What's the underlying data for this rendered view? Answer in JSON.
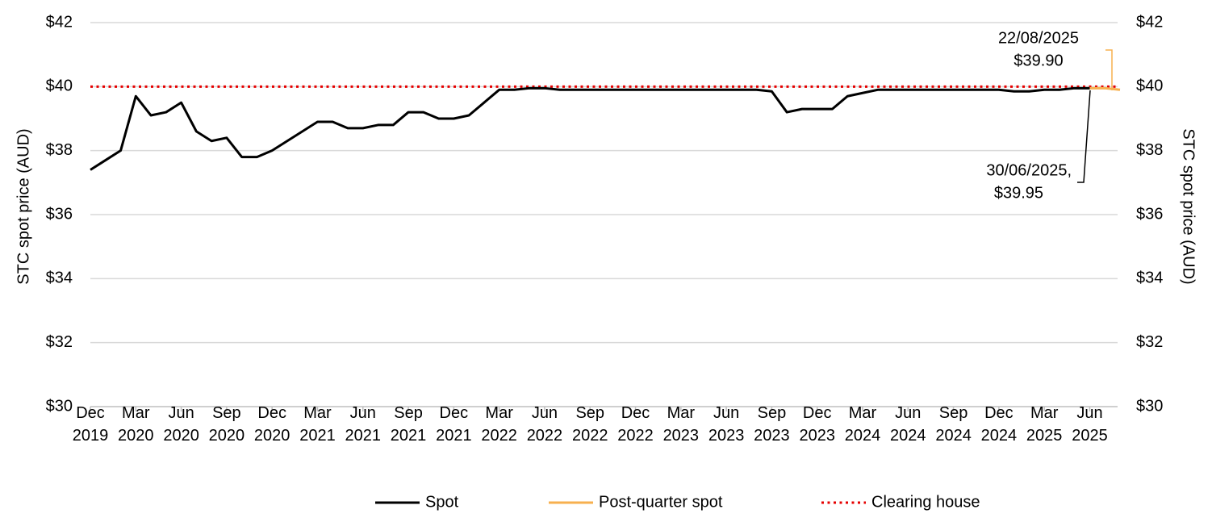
{
  "chart_data": {
    "type": "line",
    "ylabel": "STC spot price (AUD)",
    "y2label": "STC spot price (AUD)",
    "x": [
      "2019-12",
      "2020-01",
      "2020-02",
      "2020-03",
      "2020-04",
      "2020-05",
      "2020-06",
      "2020-07",
      "2020-08",
      "2020-09",
      "2020-10",
      "2020-11",
      "2020-12",
      "2021-01",
      "2021-02",
      "2021-03",
      "2021-04",
      "2021-05",
      "2021-06",
      "2021-07",
      "2021-08",
      "2021-09",
      "2021-10",
      "2021-11",
      "2021-12",
      "2022-01",
      "2022-02",
      "2022-03",
      "2022-04",
      "2022-05",
      "2022-06",
      "2022-07",
      "2022-08",
      "2022-09",
      "2022-10",
      "2022-11",
      "2022-12",
      "2023-01",
      "2023-02",
      "2023-03",
      "2023-04",
      "2023-05",
      "2023-06",
      "2023-07",
      "2023-08",
      "2023-09",
      "2023-10",
      "2023-11",
      "2023-12",
      "2024-01",
      "2024-02",
      "2024-03",
      "2024-04",
      "2024-05",
      "2024-06",
      "2024-07",
      "2024-08",
      "2024-09",
      "2024-10",
      "2024-11",
      "2024-12",
      "2025-01",
      "2025-02",
      "2025-03",
      "2025-04",
      "2025-05",
      "2025-06",
      "2025-07",
      "2025-08"
    ],
    "series": [
      {
        "name": "Spot",
        "color": "#000000",
        "values": [
          37.4,
          37.7,
          38.0,
          39.7,
          39.1,
          39.2,
          39.5,
          38.6,
          38.3,
          38.4,
          37.8,
          37.8,
          38.0,
          38.3,
          38.6,
          38.9,
          38.9,
          38.7,
          38.7,
          38.8,
          38.8,
          39.2,
          39.2,
          39.0,
          39.0,
          39.1,
          39.5,
          39.9,
          39.9,
          39.95,
          39.95,
          39.9,
          39.9,
          39.9,
          39.9,
          39.9,
          39.9,
          39.9,
          39.9,
          39.9,
          39.9,
          39.9,
          39.9,
          39.9,
          39.9,
          39.85,
          39.2,
          39.3,
          39.3,
          39.3,
          39.7,
          39.8,
          39.9,
          39.9,
          39.9,
          39.9,
          39.9,
          39.9,
          39.9,
          39.9,
          39.9,
          39.85,
          39.85,
          39.9,
          39.9,
          39.95,
          39.95,
          null,
          null
        ]
      },
      {
        "name": "Post-quarter spot",
        "color": "#f7b04f",
        "values": [
          null,
          null,
          null,
          null,
          null,
          null,
          null,
          null,
          null,
          null,
          null,
          null,
          null,
          null,
          null,
          null,
          null,
          null,
          null,
          null,
          null,
          null,
          null,
          null,
          null,
          null,
          null,
          null,
          null,
          null,
          null,
          null,
          null,
          null,
          null,
          null,
          null,
          null,
          null,
          null,
          null,
          null,
          null,
          null,
          null,
          null,
          null,
          null,
          null,
          null,
          null,
          null,
          null,
          null,
          null,
          null,
          null,
          null,
          null,
          null,
          null,
          null,
          null,
          null,
          null,
          null,
          39.95,
          39.95,
          39.9
        ]
      }
    ],
    "hlines": [
      {
        "name": "Clearing house",
        "value": 40,
        "color": "#e60000",
        "style": "dotted"
      }
    ],
    "xlim": [
      "2019-12",
      "2025-08"
    ],
    "xticks": [
      {
        "value": "2019-12",
        "label": "Dec 2019"
      },
      {
        "value": "2020-03",
        "label": "Mar 2020"
      },
      {
        "value": "2020-06",
        "label": "Jun 2020"
      },
      {
        "value": "2020-09",
        "label": "Sep 2020"
      },
      {
        "value": "2020-12",
        "label": "Dec 2020"
      },
      {
        "value": "2021-03",
        "label": "Mar 2021"
      },
      {
        "value": "2021-06",
        "label": "Jun 2021"
      },
      {
        "value": "2021-09",
        "label": "Sep 2021"
      },
      {
        "value": "2021-12",
        "label": "Dec 2021"
      },
      {
        "value": "2022-03",
        "label": "Mar 2022"
      },
      {
        "value": "2022-06",
        "label": "Jun 2022"
      },
      {
        "value": "2022-09",
        "label": "Sep 2022"
      },
      {
        "value": "2022-12",
        "label": "Dec 2022"
      },
      {
        "value": "2023-03",
        "label": "Mar 2023"
      },
      {
        "value": "2023-06",
        "label": "Jun 2023"
      },
      {
        "value": "2023-09",
        "label": "Sep 2023"
      },
      {
        "value": "2023-12",
        "label": "Dec 2023"
      },
      {
        "value": "2024-03",
        "label": "Mar 2024"
      },
      {
        "value": "2024-06",
        "label": "Jun 2024"
      },
      {
        "value": "2024-09",
        "label": "Sep 2024"
      },
      {
        "value": "2024-12",
        "label": "Dec 2024"
      },
      {
        "value": "2025-03",
        "label": "Mar 2025"
      },
      {
        "value": "2025-06",
        "label": "Jun 2025"
      }
    ],
    "ylim": [
      30,
      42
    ],
    "yticks": [
      {
        "value": 30,
        "label": "$30"
      },
      {
        "value": 32,
        "label": "$32"
      },
      {
        "value": 34,
        "label": "$34"
      },
      {
        "value": 36,
        "label": "$36"
      },
      {
        "value": 38,
        "label": "$38"
      },
      {
        "value": 40,
        "label": "$40"
      },
      {
        "value": 42,
        "label": "$42"
      }
    ],
    "y2lim": [
      30,
      42
    ],
    "y2ticks": [
      {
        "value": 30,
        "label": "$30"
      },
      {
        "value": 32,
        "label": "$32"
      },
      {
        "value": 34,
        "label": "$34"
      },
      {
        "value": 36,
        "label": "$36"
      },
      {
        "value": 38,
        "label": "$38"
      },
      {
        "value": 40,
        "label": "$40"
      },
      {
        "value": 42,
        "label": "$42"
      }
    ],
    "grid": true,
    "legend": "bottom",
    "annotations": [
      {
        "lines": [
          "22/08/2025",
          "$39.90"
        ]
      },
      {
        "lines": [
          "30/06/2025,",
          "$39.95"
        ]
      }
    ]
  }
}
